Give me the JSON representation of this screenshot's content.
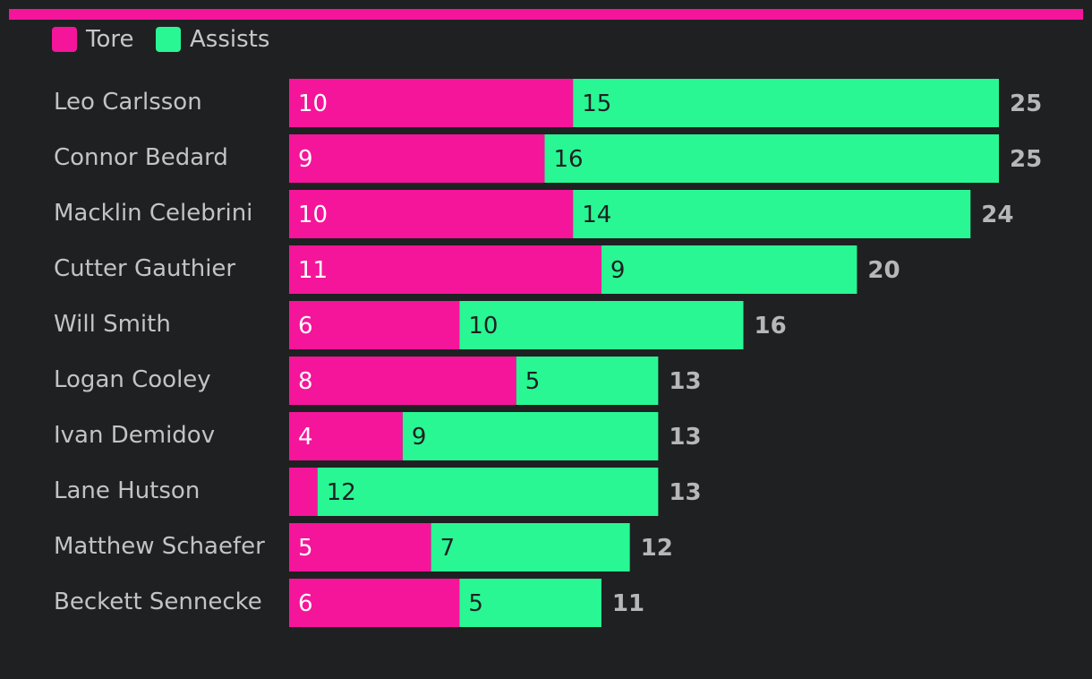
{
  "colors": {
    "tore": "#f5159a",
    "assists": "#29f793",
    "background": "#1f2022",
    "accent_bar": "#f5159a"
  },
  "legend": {
    "items": [
      {
        "label": "Tore",
        "color": "#f5159a"
      },
      {
        "label": "Assists",
        "color": "#29f793"
      }
    ]
  },
  "chart_data": {
    "type": "bar",
    "orientation": "horizontal",
    "stacked": true,
    "title": "",
    "xlabel": "",
    "ylabel": "",
    "xlim": [
      0,
      25
    ],
    "legend_position": "top-left",
    "categories": [
      "Leo Carlsson",
      "Connor Bedard",
      "Macklin Celebrini",
      "Cutter Gauthier",
      "Will Smith",
      "Logan Cooley",
      "Ivan Demidov",
      "Lane Hutson",
      "Matthew Schaefer",
      "Beckett Sennecke"
    ],
    "series": [
      {
        "name": "Tore",
        "values": [
          10,
          9,
          10,
          11,
          6,
          8,
          4,
          1,
          5,
          6
        ]
      },
      {
        "name": "Assists",
        "values": [
          15,
          16,
          14,
          9,
          10,
          5,
          9,
          12,
          7,
          5
        ]
      }
    ],
    "totals": [
      25,
      25,
      24,
      20,
      16,
      13,
      13,
      13,
      12,
      11
    ],
    "segment_labels": {
      "Tore": [
        "10",
        "9",
        "10",
        "11",
        "6",
        "8",
        "4",
        "",
        "5",
        "6"
      ],
      "Assists": [
        "15",
        "16",
        "14",
        "9",
        "10",
        "5",
        "9",
        "12",
        "7",
        "5"
      ]
    }
  }
}
